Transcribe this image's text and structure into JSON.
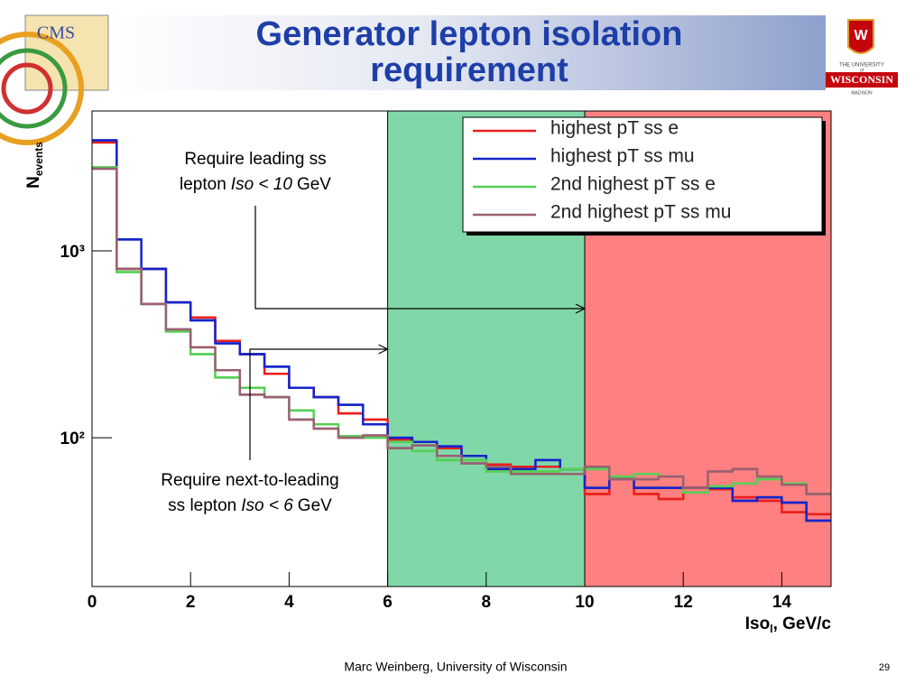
{
  "header": {
    "title": "Generator lepton isolation requirement",
    "cms_logo": "CMS",
    "university": {
      "line1": "THE UNIVERSITY",
      "of": "of",
      "name": "WISCONSIN",
      "city": "MADISON"
    }
  },
  "chart_data": {
    "type": "histogram",
    "bins": [
      0,
      0.5,
      1,
      1.5,
      2,
      2.5,
      3,
      3.5,
      4,
      4.5,
      5,
      5.5,
      6,
      6.5,
      7,
      7.5,
      8,
      8.5,
      9,
      9.5,
      10,
      10.5,
      11,
      11.5,
      12,
      12.5,
      13,
      13.5,
      14,
      14.5,
      15
    ],
    "series": [
      {
        "name": "highest pT ss e",
        "color": "#e8201c",
        "values": [
          3800,
          800,
          800,
          530,
          440,
          330,
          280,
          220,
          185,
          165,
          135,
          125,
          98,
          95,
          88,
          80,
          72,
          70,
          70,
          68,
          50,
          60,
          50,
          47,
          54,
          53,
          48,
          46,
          40,
          39
        ]
      },
      {
        "name": "highest pT ss mu",
        "color": "#1424c8",
        "values": [
          3900,
          1150,
          800,
          530,
          425,
          320,
          280,
          240,
          185,
          165,
          150,
          118,
          100,
          95,
          90,
          80,
          68,
          68,
          76,
          68,
          54,
          60,
          54,
          54,
          54,
          54,
          46,
          48,
          45,
          36
        ]
      },
      {
        "name": "2nd highest pT ss e",
        "color": "#55d055",
        "values": [
          2800,
          770,
          520,
          370,
          280,
          210,
          185,
          165,
          140,
          118,
          102,
          100,
          95,
          85,
          76,
          76,
          66,
          66,
          66,
          68,
          68,
          62,
          64,
          62,
          51,
          55,
          57,
          60,
          57,
          50
        ]
      },
      {
        "name": "2nd highest pT ss mu",
        "color": "#9a6070",
        "values": [
          2750,
          800,
          520,
          380,
          305,
          230,
          170,
          165,
          125,
          112,
          100,
          103,
          88,
          91,
          80,
          73,
          70,
          64,
          64,
          64,
          70,
          60,
          60,
          62,
          54,
          66,
          68,
          62,
          56,
          50
        ]
      }
    ],
    "xlim": [
      0,
      15
    ],
    "xticks": [
      0,
      2,
      4,
      6,
      8,
      10,
      12,
      14
    ],
    "ylim": [
      16,
      5600
    ],
    "yscale": "log",
    "yticks": [
      {
        "value": 100,
        "label": "10²"
      },
      {
        "value": 1000,
        "label": "10³"
      }
    ],
    "xlabel": {
      "text": "Iso",
      "sub": "l",
      "rest": ", GeV/c"
    },
    "ylabel": {
      "text": "N",
      "sub": "events"
    },
    "legend": "upper right",
    "regions": [
      {
        "x": [
          6,
          10
        ],
        "color": "#80d8a8"
      },
      {
        "x": [
          10,
          15
        ],
        "color": "#ff8080"
      }
    ],
    "annotations": [
      {
        "line1": "Require leading ss",
        "pre": "lepton",
        "italic": "Iso < 10",
        "post": "GeV",
        "points_to": 10
      },
      {
        "line1": "Require next-to-leading",
        "pre": "ss lepton",
        "italic": "Iso < 6",
        "post": "GeV",
        "points_to": 6
      }
    ]
  },
  "footer": {
    "author": "Marc Weinberg, University of Wisconsin",
    "page": "29"
  }
}
